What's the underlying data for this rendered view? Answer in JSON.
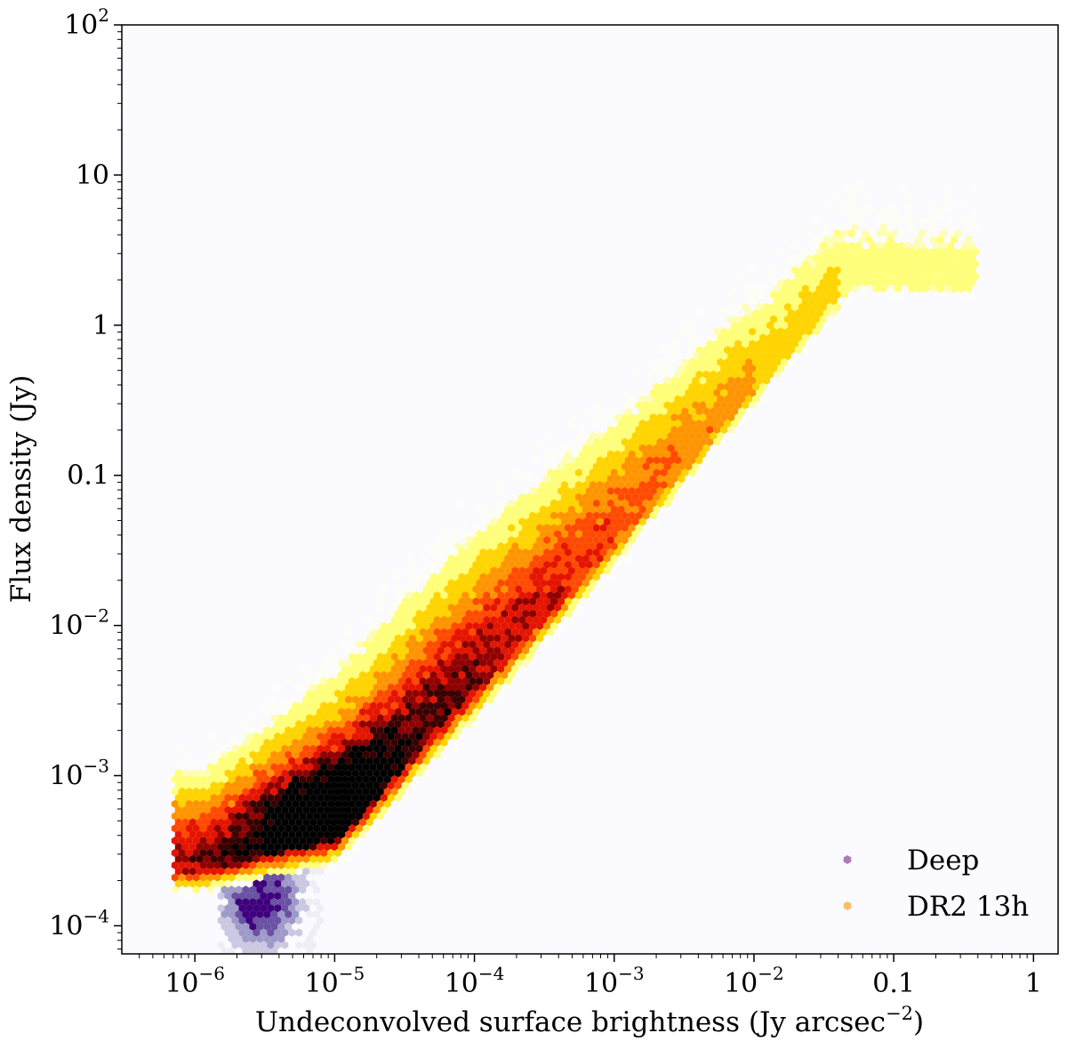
{
  "chart_data": {
    "type": "heatmap",
    "subtype": "hexbin-density-overlay",
    "title": "",
    "xlabel": "Undeconvolved surface brightness (Jy arcsec",
    "xlabel_exponent": "−2",
    "xlabel_close": ")",
    "ylabel": "Flux density (Jy)",
    "xscale": "log",
    "yscale": "log",
    "xlim": [
      3e-07,
      1.5
    ],
    "ylim": [
      6.5e-05,
      100
    ],
    "grid": false,
    "background_color": "#fbfaff",
    "x_ticks": [
      {
        "value": 1e-06,
        "base": "10",
        "exp": "−6"
      },
      {
        "value": 1e-05,
        "base": "10",
        "exp": "−5"
      },
      {
        "value": 0.0001,
        "base": "10",
        "exp": "−4"
      },
      {
        "value": 0.001,
        "base": "10",
        "exp": "−3"
      },
      {
        "value": 0.01,
        "base": "10",
        "exp": "−2"
      },
      {
        "value": 0.1,
        "base": "0.1",
        "exp": ""
      },
      {
        "value": 1,
        "base": "1",
        "exp": ""
      }
    ],
    "y_ticks": [
      {
        "value": 0.0001,
        "base": "10",
        "exp": "−4"
      },
      {
        "value": 0.001,
        "base": "10",
        "exp": "−3"
      },
      {
        "value": 0.01,
        "base": "10",
        "exp": "−2"
      },
      {
        "value": 0.1,
        "base": "0.1",
        "exp": ""
      },
      {
        "value": 1,
        "base": "1",
        "exp": ""
      },
      {
        "value": 10,
        "base": "10",
        "exp": ""
      },
      {
        "value": 100,
        "base": "10",
        "exp": "2"
      }
    ],
    "legend": {
      "placement": "lower-right",
      "entries": [
        {
          "name": "Deep",
          "color": "#b07ab8"
        },
        {
          "name": "DR2 13h",
          "color": "#f7be6a"
        }
      ]
    },
    "series": [
      {
        "name": "DR2 13h",
        "colormap": "hot_r",
        "colors": [
          "#fffff0",
          "#ffff7a",
          "#ffd400",
          "#ff9400",
          "#ff4a00",
          "#e51400",
          "#900000",
          "#3a0000",
          "#000000"
        ],
        "ridge": [
          {
            "x": 1.2e-06,
            "y_low": 0.00015,
            "y_ridge": 0.00025,
            "y_high": 0.003
          },
          {
            "x": 1e-05,
            "y_low": 0.00023,
            "y_ridge": 0.0005,
            "y_high": 0.02
          },
          {
            "x": 0.0001,
            "y_low": 0.002,
            "y_ridge": 0.004,
            "y_high": 0.2
          },
          {
            "x": 0.001,
            "y_low": 0.02,
            "y_ridge": 0.04,
            "y_high": 1
          },
          {
            "x": 0.01,
            "y_low": 0.25,
            "y_ridge": 0.4,
            "y_high": 6
          },
          {
            "x": 0.05,
            "y_low": 1.3,
            "y_ridge": 2,
            "y_high": 25
          }
        ],
        "peak_density": {
          "x": 1.2e-05,
          "y": 0.0005
        }
      },
      {
        "name": "Deep",
        "colormap": "Purples",
        "colors": [
          "#efedf5",
          "#cbc9e2",
          "#9e9ac8",
          "#6a51a3",
          "#3f007d"
        ],
        "region": {
          "x_range": [
            1.5e-06,
            8e-06
          ],
          "y_range": [
            6.5e-05,
            0.001
          ]
        },
        "peak_density": {
          "x": 3e-06,
          "y": 0.00015
        }
      }
    ]
  }
}
